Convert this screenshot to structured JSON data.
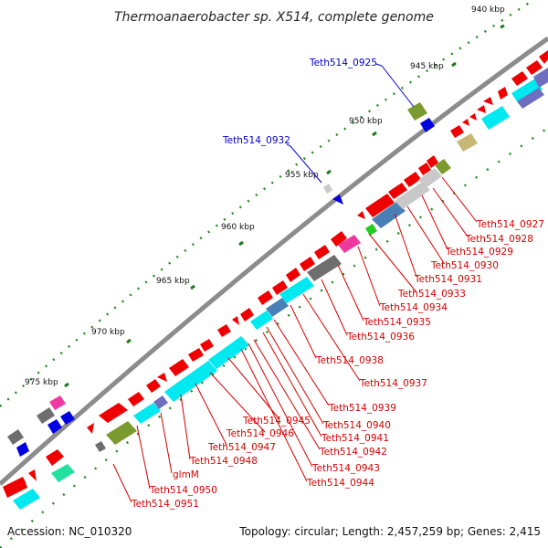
{
  "title": "Thermoanaerobacter sp. X514, complete genome",
  "footer": {
    "accession": "Accession: NC_010320",
    "summary": "Topology: circular; Length: 2,457,259 bp; Genes: 2,415"
  },
  "kbp_labels": [
    "940 kbp",
    "945 kbp",
    "950 kbp",
    "955 kbp",
    "960 kbp",
    "965 kbp",
    "970 kbp",
    "975 kbp"
  ],
  "gene_labels_red": [
    "Teth514_0927",
    "Teth514_0928",
    "Teth514_0929",
    "Teth514_0930",
    "Teth514_0931",
    "Teth514_0933",
    "Teth514_0934",
    "Teth514_0935",
    "Teth514_0936",
    "Teth514_0938",
    "Teth514_0937",
    "Teth514_0939",
    "Teth514_0940",
    "Teth514_0941",
    "Teth514_0942",
    "Teth514_0943",
    "Teth514_0944",
    "Teth514_0945",
    "Teth514_0946",
    "Teth514_0947",
    "Teth514_0948",
    "glmM",
    "Teth514_0950",
    "Teth514_0951"
  ],
  "gene_labels_blue": [
    "Teth514_0925",
    "Teth514_0932"
  ],
  "colors": {
    "backbone": "#8c8c8c",
    "gene_red": "#ee0000",
    "gene_cyan": "#00e8f0",
    "gene_steel": "#4a7fb5",
    "gene_gray": "#6e6e6e",
    "gene_lightgray": "#c8c8c8",
    "gene_olive": "#7a9a2e",
    "gene_tan": "#c8b878",
    "gene_magenta": "#ee3aa0",
    "gene_green": "#22e0a0",
    "gene_blue": "#0000e0",
    "gene_purple": "#6e6ec0",
    "tick_green": "#228b22",
    "label_red": "#d40000",
    "label_blue": "#0000c8"
  }
}
